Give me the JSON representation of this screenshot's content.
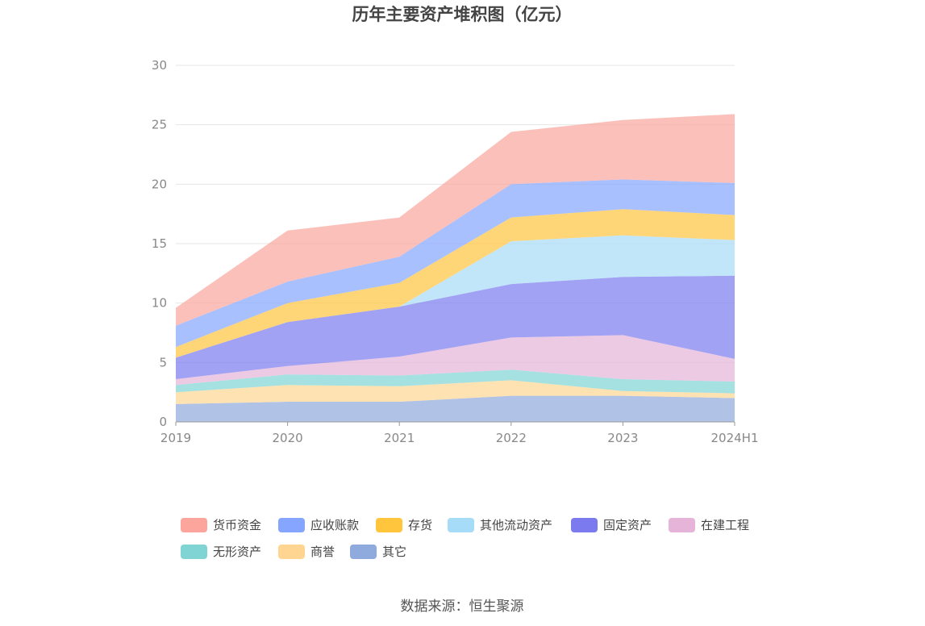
{
  "chart_data": {
    "type": "area",
    "stacked": true,
    "title": "历年主要资产堆积图（亿元）",
    "xlabel": "",
    "ylabel": "",
    "categories": [
      "2019",
      "2020",
      "2021",
      "2022",
      "2023",
      "2024H1"
    ],
    "ylim": [
      0,
      30
    ],
    "yticks": [
      "0",
      "5",
      "10",
      "15",
      "20",
      "25",
      "30"
    ],
    "grid": true,
    "legend_position": "bottom",
    "series": [
      {
        "name": "其它",
        "color": "#8faadc",
        "values": [
          1.5,
          1.7,
          1.7,
          2.2,
          2.2,
          2.0
        ]
      },
      {
        "name": "商誉",
        "color": "#ffd591",
        "values": [
          1.0,
          1.4,
          1.3,
          1.3,
          0.4,
          0.4
        ]
      },
      {
        "name": "无形资产",
        "color": "#80d4d4",
        "values": [
          0.6,
          0.9,
          0.9,
          0.9,
          1.0,
          1.0
        ]
      },
      {
        "name": "在建工程",
        "color": "#e6b3d9",
        "values": [
          0.5,
          0.7,
          1.6,
          2.7,
          3.7,
          1.9
        ]
      },
      {
        "name": "固定资产",
        "color": "#7b7bef",
        "values": [
          1.8,
          3.7,
          4.2,
          4.5,
          4.9,
          7.0
        ]
      },
      {
        "name": "其他流动资产",
        "color": "#a6dcf7",
        "values": [
          0.0,
          0.0,
          0.0,
          3.6,
          3.5,
          3.0
        ]
      },
      {
        "name": "存货",
        "color": "#ffc53d",
        "values": [
          0.9,
          1.6,
          2.0,
          2.0,
          2.2,
          2.1
        ]
      },
      {
        "name": "应收账款",
        "color": "#85a5ff",
        "values": [
          1.8,
          1.8,
          2.2,
          2.8,
          2.5,
          2.7
        ]
      },
      {
        "name": "货币资金",
        "color": "#fba59c",
        "values": [
          1.5,
          4.3,
          3.3,
          4.4,
          5.0,
          5.8
        ]
      }
    ],
    "legend_order": [
      "货币资金",
      "应收账款",
      "存货",
      "其他流动资产",
      "固定资产",
      "在建工程",
      "无形资产",
      "商誉",
      "其它"
    ]
  },
  "source": "数据来源：恒生聚源"
}
